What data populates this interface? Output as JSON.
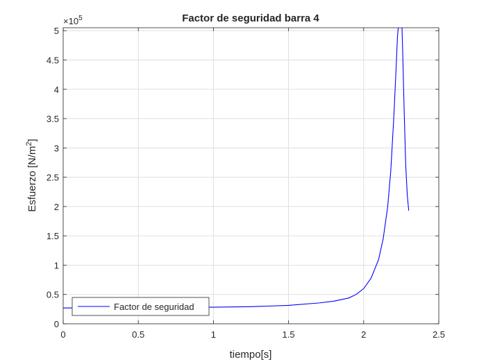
{
  "chart_data": {
    "type": "line",
    "title": "Factor de seguridad barra 4",
    "xlabel": "tiempo[s]",
    "ylabel_main": "Esfuerzo [N/m",
    "ylabel_sup": "2",
    "ylabel_close": "]",
    "ylabel": "Esfuerzo [N/m2]",
    "exponent_prefix": "×10",
    "exponent_power": "5",
    "xlim": [
      0,
      2.5
    ],
    "ylim": [
      0,
      5.05
    ],
    "y_units": "x 1e5 N/m^2",
    "xticks": [
      0,
      0.5,
      1,
      1.5,
      2,
      2.5
    ],
    "xtick_labels": [
      "0",
      "0.5",
      "1",
      "1.5",
      "2",
      "2.5"
    ],
    "yticks": [
      0,
      0.5,
      1,
      1.5,
      2,
      2.5,
      3,
      3.5,
      4,
      4.5,
      5
    ],
    "ytick_labels": [
      "0",
      "0.5",
      "1",
      "1.5",
      "2",
      "2.5",
      "3",
      "3.5",
      "4",
      "4.5",
      "5"
    ],
    "grid": true,
    "legend_position": "bottom-left",
    "series": [
      {
        "name": "Factor de seguridad",
        "color": "#0000ff",
        "x": [
          0,
          0.25,
          0.5,
          0.75,
          1.0,
          1.25,
          1.5,
          1.7,
          1.8,
          1.9,
          1.95,
          2.0,
          2.05,
          2.1,
          2.13,
          2.16,
          2.18,
          2.2,
          2.215,
          2.225,
          2.23,
          2.235,
          2.24,
          2.25,
          2.255,
          2.26,
          2.27,
          2.28,
          2.29,
          2.3
        ],
        "y": [
          0.27,
          0.272,
          0.275,
          0.278,
          0.283,
          0.292,
          0.315,
          0.355,
          0.385,
          0.44,
          0.5,
          0.6,
          0.78,
          1.1,
          1.45,
          2.0,
          2.6,
          3.5,
          4.3,
          4.9,
          5.05,
          5.05,
          5.05,
          5.05,
          5.05,
          4.6,
          3.6,
          2.7,
          2.2,
          1.93
        ]
      }
    ]
  }
}
